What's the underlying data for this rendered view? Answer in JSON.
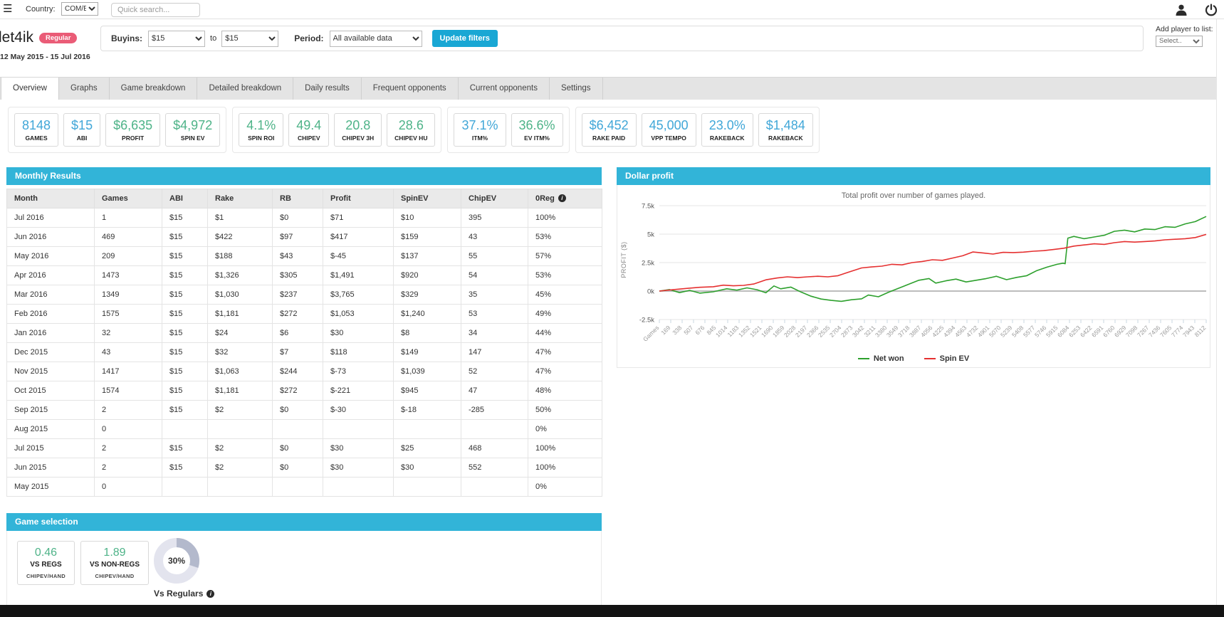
{
  "topbar": {
    "menu_icon": "☰",
    "country_label": "Country:",
    "country_value": "COM/EU",
    "search_placeholder": "Quick search...",
    "user_icon": "user-silhouette",
    "power_icon": "power-symbol"
  },
  "header": {
    "player_name": "let4ik",
    "badge": "Regular",
    "date_range": "12 May 2015 - 15 Jul 2016"
  },
  "filters": {
    "buyins_label": "Buyins:",
    "buyin_from": "$15",
    "to_label": "to",
    "buyin_to": "$15",
    "period_label": "Period:",
    "period_value": "All available data",
    "update_button": "Update filters"
  },
  "add_player": {
    "label": "Add player to list:",
    "value": "Select.."
  },
  "tabs": [
    {
      "label": "Overview",
      "active": true
    },
    {
      "label": "Graphs",
      "active": false
    },
    {
      "label": "Game breakdown",
      "active": false
    },
    {
      "label": "Detailed breakdown",
      "active": false
    },
    {
      "label": "Daily results",
      "active": false
    },
    {
      "label": "Frequent opponents",
      "active": false
    },
    {
      "label": "Current opponents",
      "active": false
    },
    {
      "label": "Settings",
      "active": false
    }
  ],
  "stat_groups": [
    {
      "cards": [
        {
          "value": "8148",
          "label": "GAMES",
          "color": "blue"
        },
        {
          "value": "$15",
          "label": "ABI",
          "color": "blue"
        },
        {
          "value": "$6,635",
          "label": "PROFIT",
          "color": "green"
        },
        {
          "value": "$4,972",
          "label": "SPIN EV",
          "color": "green"
        }
      ]
    },
    {
      "cards": [
        {
          "value": "4.1%",
          "label": "SPIN ROI",
          "color": "green"
        },
        {
          "value": "49.4",
          "label": "CHIPEV",
          "color": "green"
        },
        {
          "value": "20.8",
          "label": "CHIPEV 3H",
          "color": "green"
        },
        {
          "value": "28.6",
          "label": "CHIPEV HU",
          "color": "green"
        }
      ]
    },
    {
      "cards": [
        {
          "value": "37.1%",
          "label": "ITM%",
          "color": "blue"
        },
        {
          "value": "36.6%",
          "label": "EV ITM%",
          "color": "green"
        }
      ]
    },
    {
      "cards": [
        {
          "value": "$6,452",
          "label": "RAKE PAID",
          "color": "blue"
        },
        {
          "value": "45,000",
          "label": "VPP TEMPO",
          "color": "blue"
        },
        {
          "value": "23.0%",
          "label": "RAKEBACK",
          "color": "blue"
        },
        {
          "value": "$1,484",
          "label": "RAKEBACK",
          "color": "blue"
        }
      ]
    }
  ],
  "monthly": {
    "panel_title": "Monthly Results",
    "columns": [
      "Month",
      "Games",
      "ABI",
      "Rake",
      "RB",
      "Profit",
      "SpinEV",
      "ChipEV",
      "0Reg"
    ],
    "rows": [
      [
        "Jul 2016",
        "1",
        "$15",
        "$1",
        "$0",
        "$71",
        "$10",
        "395",
        "100%"
      ],
      [
        "Jun 2016",
        "469",
        "$15",
        "$422",
        "$97",
        "$417",
        "$159",
        "43",
        "53%"
      ],
      [
        "May 2016",
        "209",
        "$15",
        "$188",
        "$43",
        "$-45",
        "$137",
        "55",
        "57%"
      ],
      [
        "Apr 2016",
        "1473",
        "$15",
        "$1,326",
        "$305",
        "$1,491",
        "$920",
        "54",
        "53%"
      ],
      [
        "Mar 2016",
        "1349",
        "$15",
        "$1,030",
        "$237",
        "$3,765",
        "$329",
        "35",
        "45%"
      ],
      [
        "Feb 2016",
        "1575",
        "$15",
        "$1,181",
        "$272",
        "$1,053",
        "$1,240",
        "53",
        "49%"
      ],
      [
        "Jan 2016",
        "32",
        "$15",
        "$24",
        "$6",
        "$30",
        "$8",
        "34",
        "44%"
      ],
      [
        "Dec 2015",
        "43",
        "$15",
        "$32",
        "$7",
        "$118",
        "$149",
        "147",
        "47%"
      ],
      [
        "Nov 2015",
        "1417",
        "$15",
        "$1,063",
        "$244",
        "$-73",
        "$1,039",
        "52",
        "47%"
      ],
      [
        "Oct 2015",
        "1574",
        "$15",
        "$1,181",
        "$272",
        "$-221",
        "$945",
        "47",
        "48%"
      ],
      [
        "Sep 2015",
        "2",
        "$15",
        "$2",
        "$0",
        "$-30",
        "$-18",
        "-285",
        "50%"
      ],
      [
        "Aug 2015",
        "0",
        "",
        "",
        "",
        "",
        "",
        "",
        "0%"
      ],
      [
        "Jul 2015",
        "2",
        "$15",
        "$2",
        "$0",
        "$30",
        "$25",
        "468",
        "100%"
      ],
      [
        "Jun 2015",
        "2",
        "$15",
        "$2",
        "$0",
        "$30",
        "$30",
        "552",
        "100%"
      ],
      [
        "May 2015",
        "0",
        "",
        "",
        "",
        "",
        "",
        "",
        "0%"
      ]
    ]
  },
  "game_selection": {
    "panel_title": "Game selection",
    "cards": [
      {
        "value": "0.46",
        "label": "VS REGS",
        "sublabel": "CHIPEV/HAND"
      },
      {
        "value": "1.89",
        "label": "VS NON-REGS",
        "sublabel": "CHIPEV/HAND"
      }
    ],
    "donut": {
      "percent": 30,
      "label": "30%",
      "caption": "Vs Regulars"
    }
  },
  "chart_data": {
    "type": "line",
    "panel_title": "Dollar profit",
    "title": "Total profit over number of games played.",
    "ylabel": "PROFIT ($)",
    "ytick_labels": [
      "7.5k",
      "5k",
      "2.5k",
      "0k",
      "-2.5k"
    ],
    "ytick_values": [
      7500,
      5000,
      2500,
      0,
      -2500
    ],
    "ylim": [
      -2500,
      7500
    ],
    "xlim": [
      0,
      8112
    ],
    "grid": true,
    "legend_position": "bottom",
    "xtick_labels": [
      "Games",
      "169",
      "338",
      "507",
      "676",
      "845",
      "1014",
      "1183",
      "1352",
      "1521",
      "1690",
      "1859",
      "2028",
      "2197",
      "2366",
      "2535",
      "2704",
      "2873",
      "3042",
      "3211",
      "3380",
      "3549",
      "3718",
      "3887",
      "4056",
      "4225",
      "4394",
      "4563",
      "4732",
      "4901",
      "5070",
      "5239",
      "5408",
      "5577",
      "5746",
      "5915",
      "6084",
      "6253",
      "6422",
      "6591",
      "6760",
      "6929",
      "7098",
      "7267",
      "7436",
      "7605",
      "7774",
      "7943",
      "8112"
    ],
    "series": [
      {
        "name": "Net won",
        "color": "#2da02d",
        "x": [
          0,
          150,
          300,
          450,
          600,
          800,
          1000,
          1150,
          1300,
          1450,
          1580,
          1700,
          1800,
          1950,
          2100,
          2250,
          2400,
          2550,
          2700,
          2850,
          3000,
          3100,
          3250,
          3400,
          3550,
          3700,
          3850,
          4000,
          4100,
          4250,
          4400,
          4550,
          4700,
          4850,
          5000,
          5150,
          5300,
          5450,
          5600,
          5750,
          5900,
          5990,
          6020,
          6060,
          6150,
          6300,
          6450,
          6600,
          6750,
          6900,
          7050,
          7200,
          7350,
          7500,
          7650,
          7800,
          7950,
          8112
        ],
        "y": [
          0,
          130,
          -140,
          60,
          -180,
          -60,
          200,
          80,
          280,
          120,
          -150,
          450,
          200,
          350,
          -80,
          -450,
          -700,
          -820,
          -900,
          -760,
          -680,
          -350,
          -500,
          -100,
          250,
          600,
          950,
          1100,
          700,
          900,
          1050,
          800,
          950,
          1100,
          1300,
          1000,
          1200,
          1350,
          1800,
          2100,
          2350,
          2450,
          2400,
          4650,
          4800,
          4600,
          4750,
          4900,
          5250,
          5350,
          5200,
          5450,
          5400,
          5650,
          5600,
          5900,
          6100,
          6550
        ]
      },
      {
        "name": "Spin EV",
        "color": "#e53030",
        "x": [
          0,
          200,
          400,
          600,
          800,
          950,
          1100,
          1250,
          1400,
          1580,
          1750,
          1900,
          2050,
          2200,
          2350,
          2500,
          2650,
          2800,
          3000,
          3150,
          3300,
          3450,
          3600,
          3750,
          3900,
          4050,
          4200,
          4350,
          4500,
          4650,
          4800,
          4950,
          5100,
          5250,
          5400,
          5550,
          5700,
          5850,
          6000,
          6150,
          6300,
          6450,
          6600,
          6750,
          6900,
          7050,
          7200,
          7350,
          7500,
          7650,
          7800,
          7950,
          8112
        ],
        "y": [
          0,
          120,
          230,
          330,
          380,
          520,
          460,
          500,
          620,
          990,
          1150,
          1250,
          1180,
          1250,
          1300,
          1250,
          1350,
          1650,
          2030,
          2120,
          2190,
          2350,
          2300,
          2500,
          2600,
          2750,
          2700,
          2900,
          3100,
          3430,
          3350,
          3250,
          3400,
          3380,
          3420,
          3500,
          3550,
          3650,
          3760,
          3950,
          4050,
          4150,
          4100,
          4250,
          4350,
          4300,
          4350,
          4400,
          4500,
          4550,
          4600,
          4700,
          4975
        ]
      }
    ]
  },
  "icons": {
    "info_glyph": "i"
  },
  "colors": {
    "accent": "#32b4d8",
    "button": "#19a7d4",
    "badge": "#ea5c77",
    "value_blue": "#41a7d8",
    "value_green": "#4eb388",
    "net_won": "#2da02d",
    "spin_ev": "#e53030",
    "donut_ring": "#e3e4ee",
    "donut_segment": "#b3b9cc"
  }
}
